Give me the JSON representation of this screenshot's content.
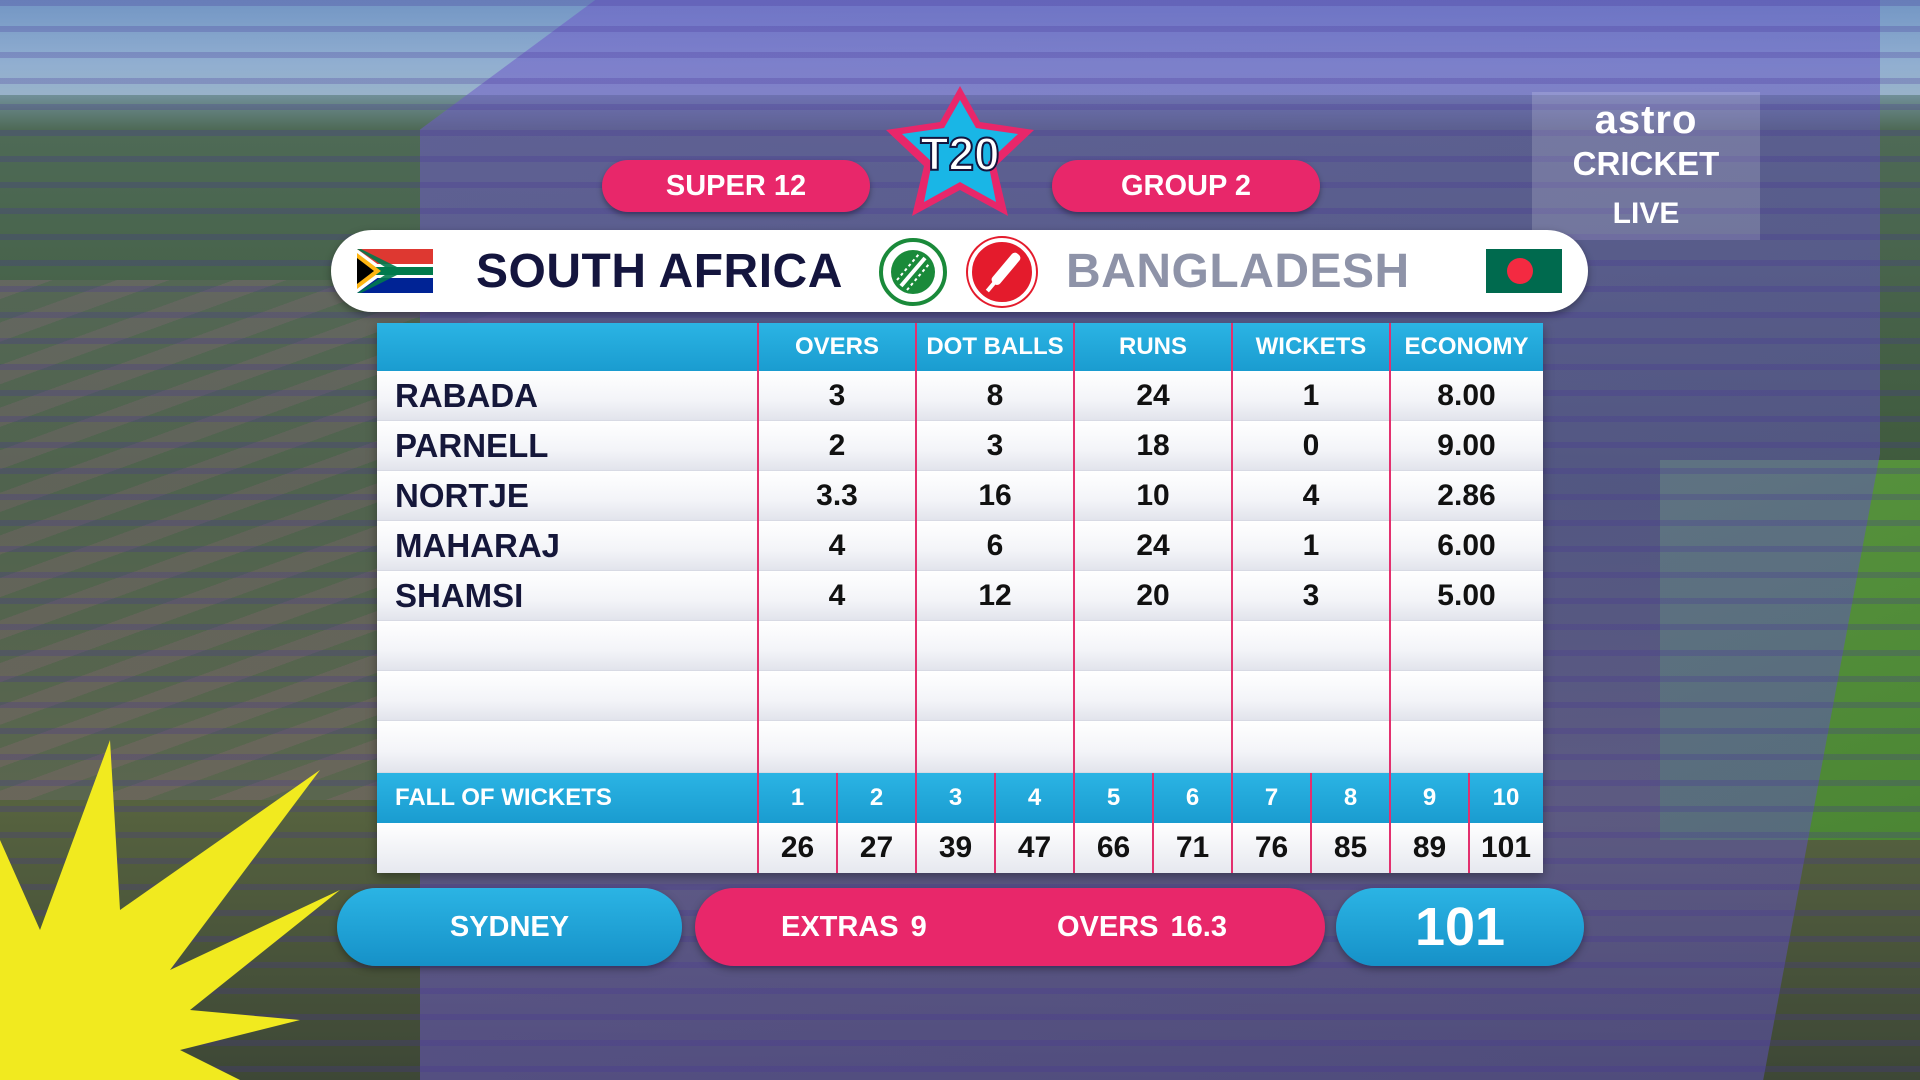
{
  "header": {
    "stage": "SUPER 12",
    "group": "GROUP 2",
    "tournament_logo": "T20"
  },
  "broadcaster": {
    "line1": "astro",
    "line2": "CRICKET",
    "line3": "LIVE"
  },
  "teams": {
    "bowling_team": "SOUTH AFRICA",
    "batting_team": "BANGLADESH",
    "bowling_icon": "cricket-ball-icon",
    "batting_icon": "cricket-bat-icon"
  },
  "table": {
    "columns": [
      "OVERS",
      "DOT BALLS",
      "RUNS",
      "WICKETS",
      "ECONOMY"
    ],
    "rows": [
      {
        "name": "RABADA",
        "overs": "3",
        "dots": "8",
        "runs": "24",
        "wickets": "1",
        "economy": "8.00"
      },
      {
        "name": "PARNELL",
        "overs": "2",
        "dots": "3",
        "runs": "18",
        "wickets": "0",
        "economy": "9.00"
      },
      {
        "name": "NORTJE",
        "overs": "3.3",
        "dots": "16",
        "runs": "10",
        "wickets": "4",
        "economy": "2.86"
      },
      {
        "name": "MAHARAJ",
        "overs": "4",
        "dots": "6",
        "runs": "24",
        "wickets": "1",
        "economy": "6.00"
      },
      {
        "name": "SHAMSI",
        "overs": "4",
        "dots": "12",
        "runs": "20",
        "wickets": "3",
        "economy": "5.00"
      }
    ]
  },
  "fall_of_wickets": {
    "title": "FALL OF WICKETS",
    "numbers": [
      "1",
      "2",
      "3",
      "4",
      "5",
      "6",
      "7",
      "8",
      "9",
      "10"
    ],
    "scores": [
      "26",
      "27",
      "39",
      "47",
      "66",
      "71",
      "76",
      "85",
      "89",
      "101"
    ]
  },
  "footer": {
    "venue": "SYDNEY",
    "extras_label": "EXTRAS",
    "extras_value": "9",
    "overs_label": "OVERS",
    "overs_value": "16.3",
    "total": "101"
  },
  "colors": {
    "pink": "#e8276a",
    "cyan": "#1a9cd0",
    "navy": "#14153e"
  }
}
